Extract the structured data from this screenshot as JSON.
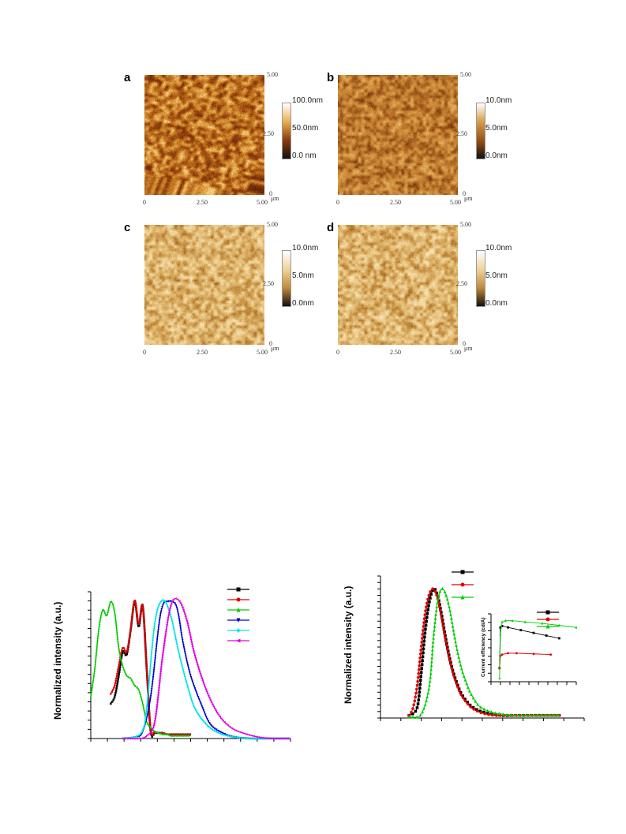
{
  "afm_figure": {
    "panels": [
      {
        "letter": "a",
        "scale_max": "100.0nm",
        "scale_mid": "50.0nm",
        "scale_min": "0.0 nm",
        "y_top": "5.00",
        "y_mid": "2.50",
        "y_bottom": "0",
        "x_left": "0",
        "x_mid": "2.50",
        "x_right": "5.00",
        "unit": "μm",
        "palette": [
          "#4a1e06",
          "#8a3a0c",
          "#c0701c",
          "#e8b050",
          "#fff1c8"
        ]
      },
      {
        "letter": "b",
        "scale_max": "10.0nm",
        "scale_mid": "5.0nm",
        "scale_min": "0.0nm",
        "y_top": "5.00",
        "y_mid": "2.50",
        "y_bottom": "0",
        "x_left": "0",
        "x_mid": "2.50",
        "x_right": "5.00",
        "unit": "μm",
        "palette": [
          "#5a2a0a",
          "#9a5218",
          "#c27e30",
          "#d89c48",
          "#f2d08a"
        ]
      },
      {
        "letter": "c",
        "scale_max": "10.0nm",
        "scale_mid": "5.0nm",
        "scale_min": "0.0nm",
        "y_top": "5.00",
        "y_mid": "2.50",
        "y_bottom": "0",
        "x_left": "0",
        "x_mid": "2.50",
        "x_right": "5.00",
        "unit": "μm",
        "palette": [
          "#8a4a14",
          "#c28a3c",
          "#deb46a",
          "#efd49a",
          "#fff6dc"
        ]
      },
      {
        "letter": "d",
        "scale_max": "10.0nm",
        "scale_mid": "5.0nm",
        "scale_min": "0.0nm",
        "y_top": "5.00",
        "y_mid": "2.50",
        "y_bottom": "0",
        "x_left": "0",
        "x_mid": "2.50",
        "x_right": "5.00",
        "unit": "μm",
        "palette": [
          "#8a4a14",
          "#c28a3c",
          "#deb46a",
          "#efd49a",
          "#fff6dc"
        ]
      }
    ]
  },
  "chart_data": [
    {
      "type": "line",
      "ylabel": "Normalized intensity (a.u.)",
      "xlabel": "",
      "xlim": [
        0,
        100
      ],
      "ylim": [
        0,
        1.05
      ],
      "series": [
        {
          "color": "#000000",
          "marker": "square",
          "x": [
            10,
            12,
            14,
            16,
            18,
            20,
            22,
            24,
            26,
            28,
            30,
            32,
            34,
            36,
            38,
            40,
            42,
            44,
            46,
            48,
            50
          ],
          "y": [
            0.25,
            0.3,
            0.45,
            0.62,
            0.6,
            0.78,
            0.98,
            0.8,
            0.95,
            0.5,
            0.05,
            0.04,
            0.04,
            0.04,
            0.03,
            0.03,
            0.03,
            0.03,
            0.03,
            0.03,
            0.03
          ]
        },
        {
          "color": "#e00000",
          "marker": "circle",
          "x": [
            10,
            12,
            14,
            16,
            18,
            20,
            22,
            24,
            26,
            28,
            30,
            32,
            34,
            36,
            38,
            40,
            42,
            44,
            46,
            48,
            50
          ],
          "y": [
            0.32,
            0.38,
            0.52,
            0.65,
            0.62,
            0.78,
            0.99,
            0.82,
            0.95,
            0.5,
            0.06,
            0.05,
            0.04,
            0.04,
            0.03,
            0.03,
            0.03,
            0.03,
            0.03,
            0.03,
            0.03
          ]
        },
        {
          "color": "#00cc00",
          "marker": "triangle-up",
          "x": [
            0,
            2,
            4,
            6,
            8,
            10,
            12,
            14,
            16,
            18,
            20,
            22,
            24,
            26,
            28,
            30,
            32,
            34,
            36,
            38,
            40,
            42,
            44,
            46,
            48,
            50
          ],
          "y": [
            0.3,
            0.5,
            0.78,
            0.92,
            0.88,
            0.98,
            0.9,
            0.65,
            0.52,
            0.45,
            0.43,
            0.38,
            0.35,
            0.25,
            0.12,
            0.08,
            0.05,
            0.04,
            0.03,
            0.03,
            0.02,
            0.02,
            0.02,
            0.02,
            0.02,
            0.02
          ]
        },
        {
          "color": "#0000cc",
          "marker": "triangle-down",
          "x": [
            16,
            22,
            26,
            30,
            34,
            36,
            38,
            42,
            44,
            46,
            50,
            56,
            60,
            66,
            72,
            80,
            90,
            100
          ],
          "y": [
            0,
            0.01,
            0.05,
            0.3,
            0.8,
            0.95,
            0.98,
            0.97,
            0.88,
            0.7,
            0.45,
            0.22,
            0.1,
            0.04,
            0.01,
            0,
            0,
            0
          ]
        },
        {
          "color": "#00e5e5",
          "marker": "diamond",
          "x": [
            16,
            22,
            26,
            28,
            32,
            36,
            40,
            44,
            48,
            52,
            58,
            64,
            72,
            80,
            90,
            100
          ],
          "y": [
            0,
            0.01,
            0.06,
            0.22,
            0.82,
            0.99,
            0.88,
            0.62,
            0.4,
            0.22,
            0.1,
            0.04,
            0.01,
            0,
            0,
            0
          ]
        },
        {
          "color": "#e000e0",
          "marker": "triangle-left",
          "x": [
            16,
            24,
            28,
            32,
            36,
            40,
            44,
            48,
            52,
            58,
            64,
            70,
            76,
            84,
            92,
            100
          ],
          "y": [
            0,
            0,
            0.02,
            0.12,
            0.6,
            0.95,
            0.99,
            0.85,
            0.6,
            0.34,
            0.17,
            0.08,
            0.04,
            0.01,
            0,
            0
          ]
        }
      ],
      "legend_position": "top-right"
    },
    {
      "type": "line",
      "ylabel": "Normalized intensity (a.u.)",
      "xlabel": "",
      "xlim": [
        0,
        100
      ],
      "ylim": [
        0,
        1.1
      ],
      "series": [
        {
          "color": "#000000",
          "marker": "square",
          "x": [
            14,
            18,
            20,
            22,
            24,
            26,
            28,
            30,
            32,
            34,
            36,
            38,
            40,
            44,
            48,
            52,
            56,
            60,
            66,
            72,
            80,
            88
          ],
          "y": [
            0.02,
            0.08,
            0.35,
            0.68,
            0.9,
            1.0,
            0.95,
            0.8,
            0.62,
            0.46,
            0.34,
            0.25,
            0.18,
            0.1,
            0.06,
            0.04,
            0.03,
            0.02,
            0.02,
            0.02,
            0.02,
            0.02
          ]
        },
        {
          "color": "#e00000",
          "marker": "circle",
          "x": [
            14,
            16,
            18,
            20,
            22,
            24,
            26,
            28,
            30,
            32,
            34,
            36,
            38,
            40,
            44,
            48,
            52,
            56,
            60,
            66,
            72,
            80,
            88
          ],
          "y": [
            0.02,
            0.08,
            0.25,
            0.55,
            0.82,
            0.96,
            1.0,
            0.93,
            0.78,
            0.6,
            0.45,
            0.33,
            0.24,
            0.17,
            0.09,
            0.05,
            0.03,
            0.02,
            0.02,
            0.02,
            0.02,
            0.02,
            0.02
          ]
        },
        {
          "color": "#00cc00",
          "marker": "triangle-up",
          "x": [
            14,
            20,
            24,
            26,
            28,
            30,
            32,
            34,
            36,
            38,
            40,
            42,
            44,
            48,
            52,
            56,
            60,
            66,
            72,
            80,
            88
          ],
          "y": [
            0.01,
            0.03,
            0.25,
            0.62,
            0.9,
            1.0,
            0.96,
            0.84,
            0.66,
            0.5,
            0.37,
            0.28,
            0.2,
            0.1,
            0.06,
            0.04,
            0.03,
            0.02,
            0.02,
            0.02,
            0.02
          ]
        }
      ],
      "inset": {
        "ylabel": "Current efficiency (cd/A)",
        "xlim": [
          0,
          100
        ],
        "ylim": [
          0,
          1
        ],
        "series": [
          {
            "color": "#000000",
            "marker": "square",
            "x": [
              10,
              11,
              13,
              20,
              35,
              50,
              65,
              80
            ],
            "y": [
              0.2,
              0.8,
              0.82,
              0.8,
              0.76,
              0.72,
              0.68,
              0.64
            ]
          },
          {
            "color": "#e00000",
            "marker": "circle",
            "x": [
              10,
              11,
              13,
              20,
              30,
              50,
              70
            ],
            "y": [
              0.2,
              0.38,
              0.4,
              0.42,
              0.42,
              0.41,
              0.4
            ]
          },
          {
            "color": "#00cc00",
            "marker": "triangle-up",
            "x": [
              10,
              11,
              13,
              17,
              25,
              40,
              60,
              80,
              100
            ],
            "y": [
              0.05,
              0.7,
              0.88,
              0.9,
              0.9,
              0.88,
              0.86,
              0.83,
              0.8
            ]
          }
        ]
      },
      "legend_position": "top-center"
    }
  ]
}
